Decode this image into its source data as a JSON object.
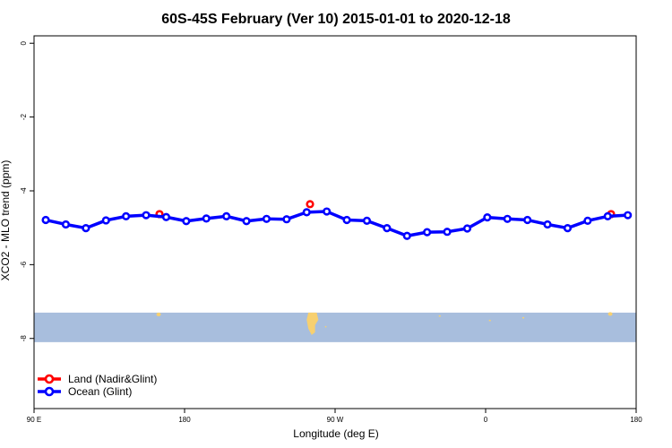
{
  "chart_data": {
    "type": "line",
    "title": "60S-45S February (Ver 10)   2015-01-01 to 2020-12-18",
    "xlabel": "Longitude (deg E)",
    "ylabel": "XCO2 - MLO trend (ppm)",
    "xlim": [
      90,
      450
    ],
    "ylim": [
      -9.9,
      0.2
    ],
    "x_ticks": [
      {
        "value": 90,
        "label": "90 E"
      },
      {
        "value": 180,
        "label": "180"
      },
      {
        "value": 270,
        "label": "90 W"
      },
      {
        "value": 360,
        "label": "0"
      },
      {
        "value": 450,
        "label": "180"
      }
    ],
    "y_ticks": [
      {
        "value": 0,
        "label": "0"
      },
      {
        "value": -2,
        "label": "-2"
      },
      {
        "value": -4,
        "label": "-4"
      },
      {
        "value": -6,
        "label": "-6"
      },
      {
        "value": -8,
        "label": "-8"
      }
    ],
    "map_band": {
      "y_top": -7.3,
      "y_bottom": -8.1,
      "ocean_color": "#a8bedd",
      "land_color": "#f7d070"
    },
    "legend": {
      "position": "bottom-left"
    },
    "series": [
      {
        "name": "Land (Nadir&Glint)",
        "color": "#ff0000",
        "x": [
          165,
          255,
          435
        ],
        "y": [
          -4.63,
          -4.36,
          -4.63
        ]
      },
      {
        "name": "Ocean (Glint)",
        "color": "#0000ff",
        "x": [
          97,
          109,
          121,
          133,
          145,
          157,
          169,
          181,
          193,
          205,
          217,
          229,
          241,
          253,
          265,
          277,
          289,
          301,
          313,
          325,
          337,
          349,
          361,
          373,
          385,
          397,
          409,
          421,
          433,
          445
        ],
        "y": [
          -4.79,
          -4.91,
          -5.01,
          -4.8,
          -4.69,
          -4.66,
          -4.71,
          -4.82,
          -4.75,
          -4.69,
          -4.82,
          -4.76,
          -4.77,
          -4.58,
          -4.56,
          -4.79,
          -4.81,
          -5.01,
          -5.22,
          -5.12,
          -5.11,
          -5.02,
          -4.72,
          -4.76,
          -4.79,
          -4.91,
          -5.01,
          -4.81,
          -4.69,
          -4.66
        ]
      }
    ]
  }
}
